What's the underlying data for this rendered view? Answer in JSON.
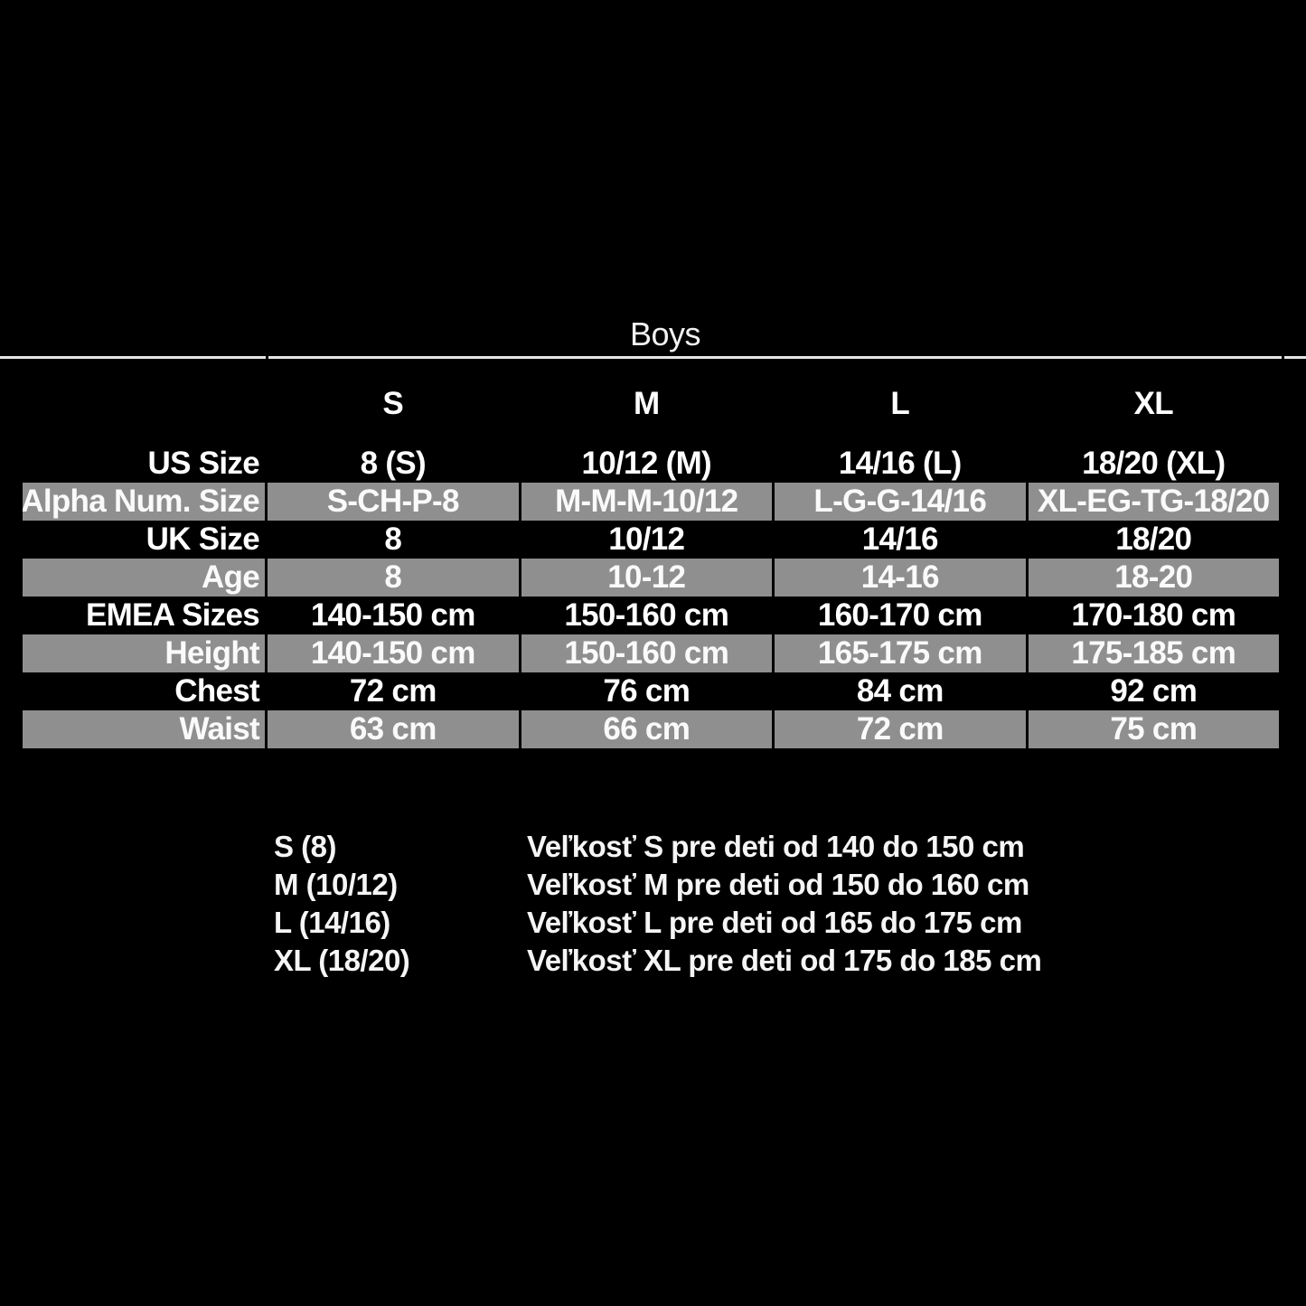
{
  "colors": {
    "background": "#000000",
    "shaded_row": "#8f8f8f",
    "text": "#ffffff",
    "header_line": "#e6e6e6"
  },
  "chart_data": {
    "type": "table",
    "title": "Boys",
    "column_headers": [
      "S",
      "M",
      "L",
      "XL"
    ],
    "rows": [
      {
        "label": "US Size",
        "shaded": false,
        "cells": [
          "8 (S)",
          "10/12 (M)",
          "14/16 (L)",
          "18/20 (XL)"
        ]
      },
      {
        "label": "Alpha Num. Size",
        "shaded": true,
        "cells": [
          "S-CH-P-8",
          "M-M-M-10/12",
          "L-G-G-14/16",
          "XL-EG-TG-18/20"
        ]
      },
      {
        "label": "UK Size",
        "shaded": false,
        "cells": [
          "8",
          "10/12",
          "14/16",
          "18/20"
        ]
      },
      {
        "label": "Age",
        "shaded": true,
        "cells": [
          "8",
          "10-12",
          "14-16",
          "18-20"
        ]
      },
      {
        "label": "EMEA Sizes",
        "shaded": false,
        "cells": [
          "140-150 cm",
          "150-160 cm",
          "160-170 cm",
          "170-180 cm"
        ]
      },
      {
        "label": "Height",
        "shaded": true,
        "cells": [
          "140-150 cm",
          "150-160 cm",
          "165-175 cm",
          "175-185 cm"
        ]
      },
      {
        "label": "Chest",
        "shaded": false,
        "cells": [
          "72 cm",
          "76 cm",
          "84 cm",
          "92 cm"
        ]
      },
      {
        "label": "Waist",
        "shaded": true,
        "cells": [
          "63 cm",
          "66 cm",
          "72 cm",
          "75 cm"
        ]
      }
    ],
    "legend": [
      {
        "size": "S (8)",
        "description": "Veľkosť S pre deti od 140 do 150 cm"
      },
      {
        "size": "M (10/12)",
        "description": "Veľkosť M pre deti od 150 do 160 cm"
      },
      {
        "size": "L (14/16)",
        "description": "Veľkosť L pre deti od 165 do 175 cm"
      },
      {
        "size": "XL (18/20)",
        "description": "Veľkosť XL pre deti od 175 do 185 cm"
      }
    ]
  }
}
